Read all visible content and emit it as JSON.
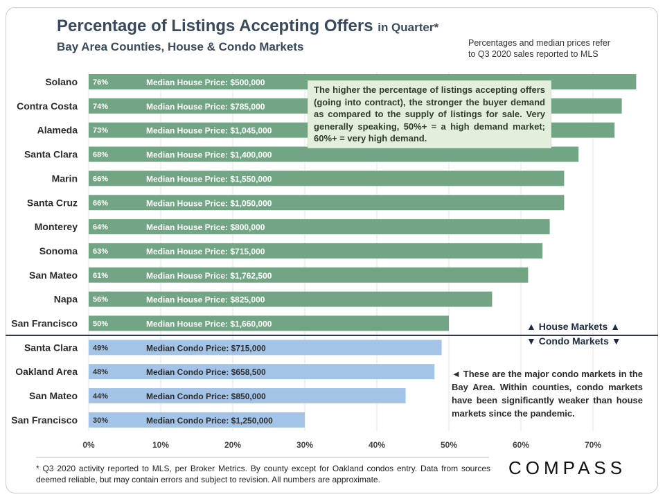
{
  "title": {
    "main": "Percentage of Listings Accepting Offers",
    "suffix": "in Quarter*"
  },
  "subtitle": "Bay Area Counties, House & Condo Markets",
  "note_top": [
    "Percentages and median prices refer",
    "to Q3 2020 sales reported to MLS"
  ],
  "colors": {
    "house": "#72a583",
    "condo": "#a3c4e6",
    "title": "#3a4a5c",
    "divider": "#1d2a40"
  },
  "chart_data": {
    "type": "bar",
    "orientation": "horizontal",
    "x_ticks": [
      "0%",
      "10%",
      "20%",
      "30%",
      "40%",
      "50%",
      "60%",
      "70%"
    ],
    "xlim": [
      0,
      80
    ],
    "series": [
      {
        "name": "House Markets",
        "price_label": "Median House Price",
        "categories": [
          "Solano",
          "Contra Costa",
          "Alameda",
          "Santa Clara",
          "Marin",
          "Santa Cruz",
          "Monterey",
          "Sonoma",
          "San Mateo",
          "Napa",
          "San Francisco"
        ],
        "values": [
          76,
          74,
          73,
          68,
          66,
          66,
          64,
          63,
          61,
          56,
          50
        ],
        "value_labels": [
          "76%",
          "74%",
          "73%",
          "68%",
          "66%",
          "66%",
          "64%",
          "63%",
          "61%",
          "56%",
          "50%"
        ],
        "prices": [
          "$500,000",
          "$785,000",
          "$1,045,000",
          "$1,400,000",
          "$1,550,000",
          "$1,050,000",
          "$800,000",
          "$715,000",
          "$1,762,500",
          "$825,000",
          "$1,660,000"
        ]
      },
      {
        "name": "Condo Markets",
        "price_label": "Median Condo Price",
        "categories": [
          "Santa Clara",
          "Oakland Area",
          "San Mateo",
          "San Francisco"
        ],
        "values": [
          49,
          48,
          44,
          30
        ],
        "value_labels": [
          "49%",
          "48%",
          "44%",
          "30%"
        ],
        "prices": [
          "$715,000",
          "$658,500",
          "$850,000",
          "$1,250,000"
        ]
      }
    ]
  },
  "callout_house": "The higher the percentage of listings accepting offers (going into contract), the stronger the buyer demand as compared to the supply of listings for sale.  Very generally speaking, 50%+ = a high demand market; 60%+ = very high demand.",
  "divider_labels": {
    "house": "▲ House Markets ▲",
    "condo": "▼ Condo Markets ▼"
  },
  "callout_condo": "◄ These are the major condo markets in the Bay Area. Within counties, condo markets have been significantly weaker than house markets since the pandemic.",
  "footnote": "* Q3 2020 activity reported to MLS, per Broker Metrics. By county except for Oakland condos entry. Data from sources deemed reliable, but may contain errors and subject to revision. All numbers are approximate.",
  "logo": "COMPASS"
}
